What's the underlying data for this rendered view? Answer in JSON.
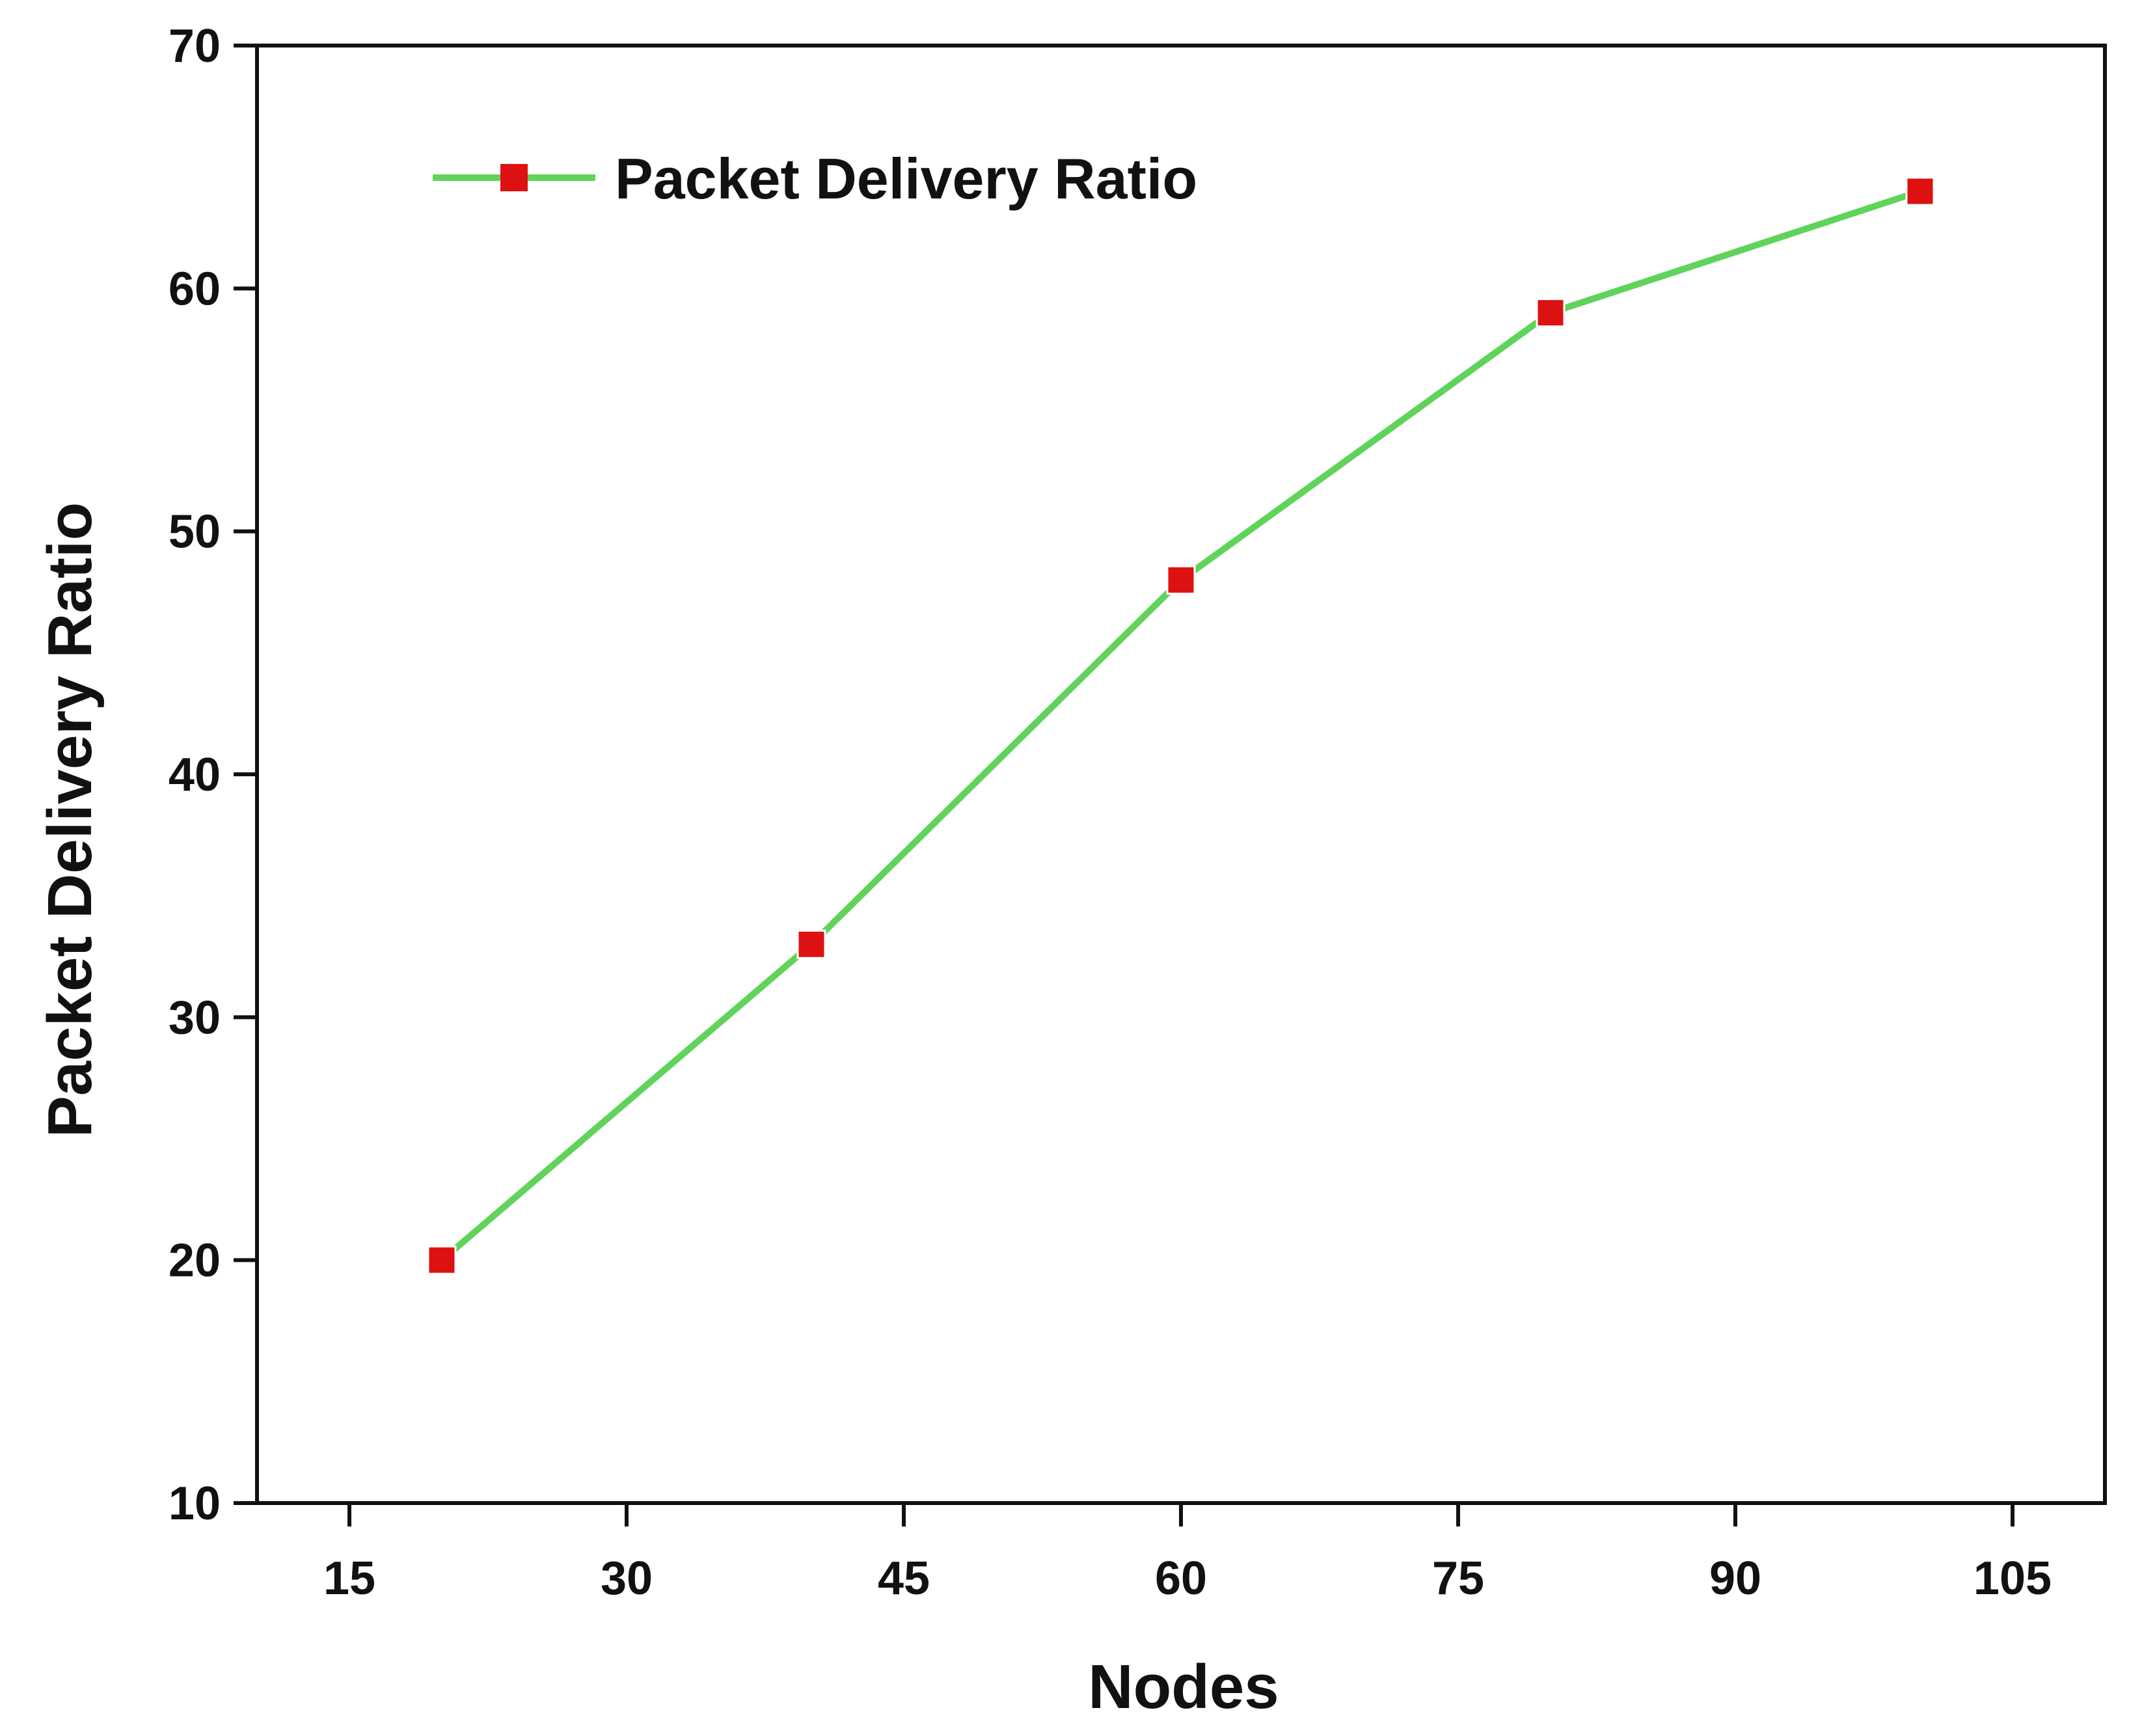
{
  "chart_data": {
    "type": "line",
    "xlabel": "Nodes",
    "ylabel": "Packet Delivery Ratio",
    "xlim": [
      10,
      110
    ],
    "ylim": [
      10,
      70
    ],
    "xticks": [
      15,
      30,
      45,
      60,
      75,
      90,
      105
    ],
    "yticks": [
      10,
      20,
      30,
      40,
      50,
      60,
      70
    ],
    "grid": false,
    "legend_position": "top-left",
    "series": [
      {
        "name": "Packet Delivery Ratio",
        "x": [
          20,
          40,
          60,
          80,
          100
        ],
        "y": [
          20,
          33,
          48,
          59,
          64
        ],
        "line_color": "#5fd35a",
        "marker_color": "#dd1111",
        "marker": "square"
      }
    ]
  }
}
